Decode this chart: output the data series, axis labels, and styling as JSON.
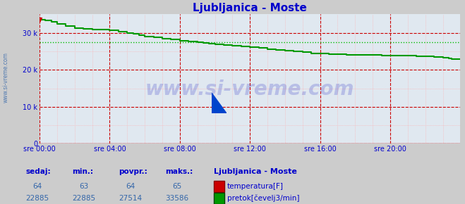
{
  "title": "Ljubljanica - Moste",
  "title_color": "#0000cc",
  "bg_color": "#cccccc",
  "plot_bg_color": "#e0e8f0",
  "grid_color_major": "#cc0000",
  "grid_color_minor": "#ffaaaa",
  "axis_color": "#cc0000",
  "yaxis_color": "#0000cc",
  "tick_color": "#0000cc",
  "ylabel_ticks": [
    0,
    10000,
    20000,
    30000
  ],
  "ylabel_tick_labels": [
    "0",
    "10 k",
    "20 k",
    "30 k"
  ],
  "ylim": [
    0,
    35000
  ],
  "xlim_hours": [
    0,
    24
  ],
  "xtick_hours": [
    0,
    4,
    8,
    12,
    16,
    20
  ],
  "xtick_labels": [
    "sre 00:00",
    "sre 04:00",
    "sre 08:00",
    "sre 12:00",
    "sre 16:00",
    "sre 20:00"
  ],
  "watermark": "www.si-vreme.com",
  "watermark_color": "#0000bb",
  "watermark_alpha": 0.18,
  "sidebar_text": "www.si-vreme.com",
  "sidebar_color": "#3366aa",
  "temp_line_color": "#cc0000",
  "flow_line_color": "#009900",
  "avg_line_color": "#00bb00",
  "avg_flow": 27514,
  "temp_sedaj": 64,
  "temp_min": 63,
  "temp_povpr": 64,
  "temp_maks": 65,
  "flow_sedaj": 22885,
  "flow_min": 22885,
  "flow_povpr": 27514,
  "flow_maks": 33586,
  "table_label_color": "#0000cc",
  "table_value_color": "#3366aa",
  "legend_title": "Ljubljanica - Moste",
  "legend_title_color": "#0000cc",
  "legend_temp_label": "temperatura[F]",
  "legend_flow_label": "pretok[čevelj3/min]",
  "figsize": [
    6.59,
    2.9
  ],
  "dpi": 100,
  "breakpoints": [
    [
      0.0,
      33586
    ],
    [
      0.3,
      33400
    ],
    [
      0.6,
      33000
    ],
    [
      1.0,
      32400
    ],
    [
      1.5,
      31800
    ],
    [
      2.0,
      31200
    ],
    [
      2.5,
      31000
    ],
    [
      3.0,
      30900
    ],
    [
      3.5,
      30800
    ],
    [
      4.0,
      30600
    ],
    [
      4.5,
      30400
    ],
    [
      5.0,
      30000
    ],
    [
      5.3,
      29700
    ],
    [
      5.6,
      29400
    ],
    [
      6.0,
      29000
    ],
    [
      6.5,
      28700
    ],
    [
      7.0,
      28400
    ],
    [
      7.5,
      28200
    ],
    [
      8.0,
      27900
    ],
    [
      8.5,
      27700
    ],
    [
      9.0,
      27500
    ],
    [
      9.3,
      27300
    ],
    [
      9.6,
      27100
    ],
    [
      10.0,
      26900
    ],
    [
      10.5,
      26700
    ],
    [
      11.0,
      26500
    ],
    [
      11.5,
      26300
    ],
    [
      12.0,
      26100
    ],
    [
      12.5,
      25900
    ],
    [
      13.0,
      25600
    ],
    [
      13.5,
      25400
    ],
    [
      14.0,
      25100
    ],
    [
      14.5,
      24900
    ],
    [
      15.0,
      24700
    ],
    [
      15.5,
      24500
    ],
    [
      16.0,
      24400
    ],
    [
      16.5,
      24300
    ],
    [
      17.0,
      24200
    ],
    [
      17.5,
      24100
    ],
    [
      18.0,
      24050
    ],
    [
      18.5,
      24000
    ],
    [
      19.0,
      23950
    ],
    [
      19.5,
      23900
    ],
    [
      20.0,
      23850
    ],
    [
      20.5,
      23800
    ],
    [
      21.0,
      23750
    ],
    [
      21.5,
      23700
    ],
    [
      22.0,
      23600
    ],
    [
      22.5,
      23400
    ],
    [
      23.0,
      23200
    ],
    [
      23.3,
      23100
    ],
    [
      23.5,
      22950
    ],
    [
      23.8,
      22885
    ],
    [
      24.0,
      22885
    ]
  ]
}
